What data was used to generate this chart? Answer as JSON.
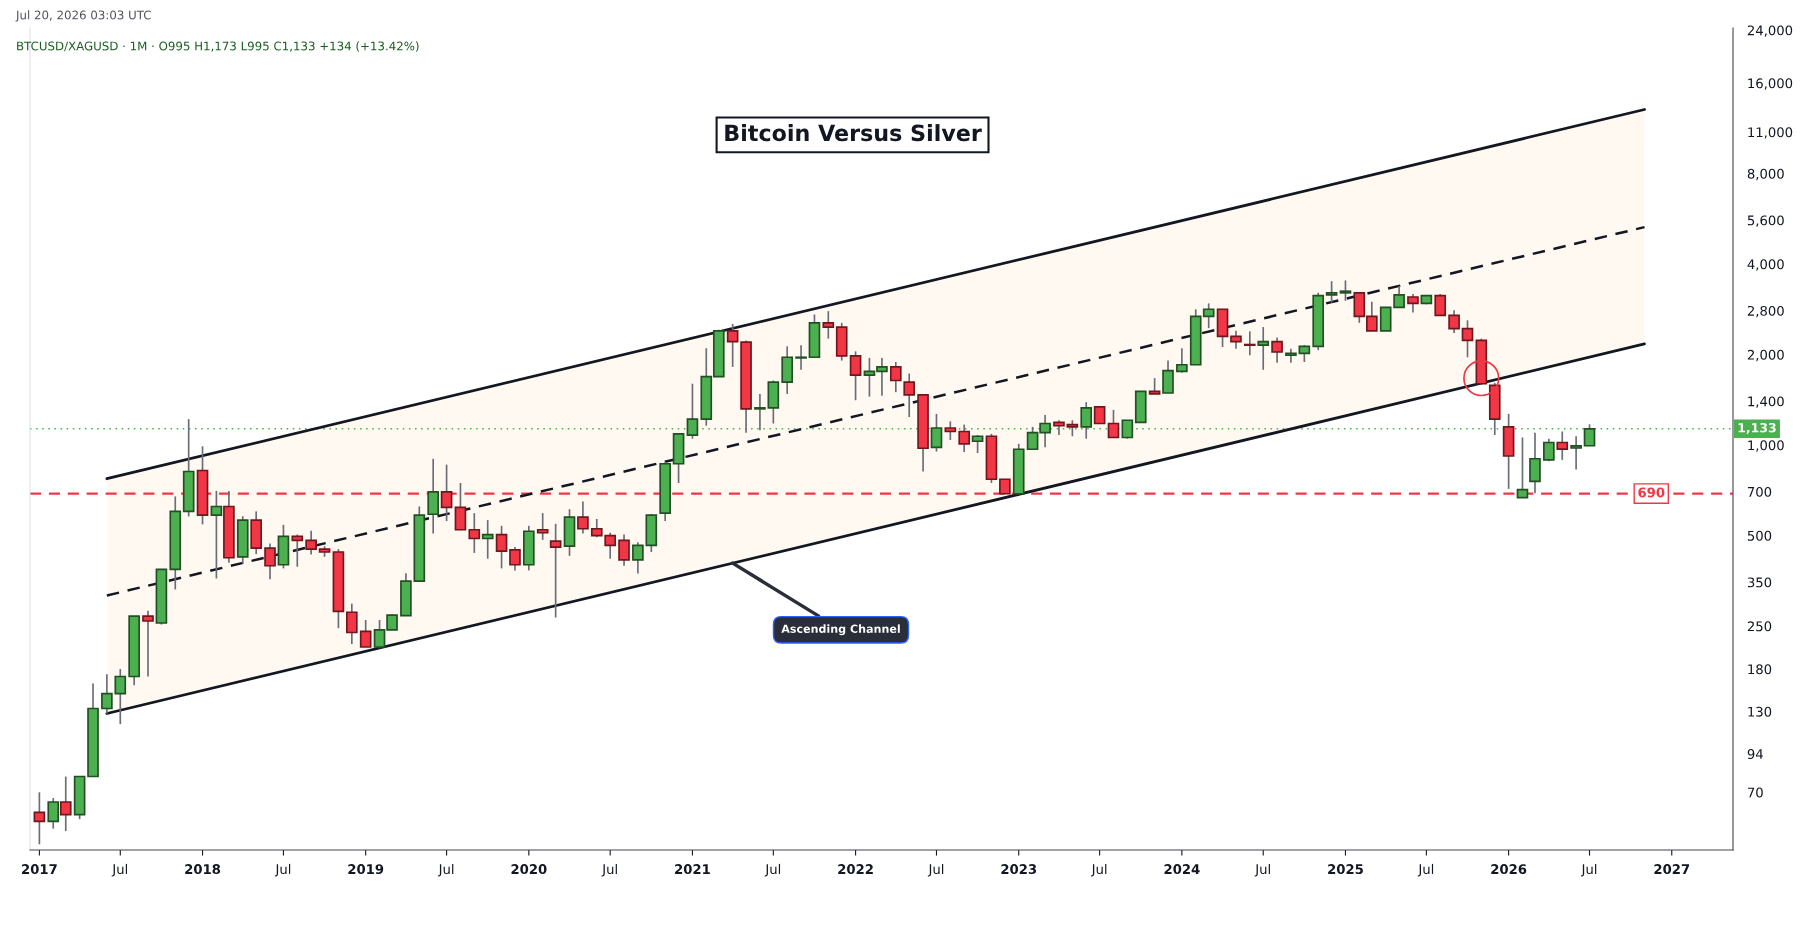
{
  "chart_data": {
    "type": "candlestick",
    "title": "Bitcoin Versus Silver",
    "subtitle": "BTCUSD/XAGUSD · 1M · O995 H1,173 L995 C1,133 +134 (+13.42%)",
    "annotations": [
      "Jul 20, 2026 03:03 UTC",
      {
        "text": "Ascending Channel",
        "x": "2021-04",
        "y": 405
      }
    ],
    "x": [
      "2017-01",
      "2017-02",
      "2017-03",
      "2017-04",
      "2017-05",
      "2017-06",
      "2017-07",
      "2017-08",
      "2017-09",
      "2017-10",
      "2017-11",
      "2017-12",
      "2018-01",
      "2018-02",
      "2018-03",
      "2018-04",
      "2018-05",
      "2018-06",
      "2018-07",
      "2018-08",
      "2018-09",
      "2018-10",
      "2018-11",
      "2018-12",
      "2019-01",
      "2019-02",
      "2019-03",
      "2019-04",
      "2019-05",
      "2019-06",
      "2019-07",
      "2019-08",
      "2019-09",
      "2019-10",
      "2019-11",
      "2019-12",
      "2020-01",
      "2020-02",
      "2020-03",
      "2020-04",
      "2020-05",
      "2020-06",
      "2020-07",
      "2020-08",
      "2020-09",
      "2020-10",
      "2020-11",
      "2020-12",
      "2021-01",
      "2021-02",
      "2021-03",
      "2021-04",
      "2021-05",
      "2021-06",
      "2021-07",
      "2021-08",
      "2021-09",
      "2021-10",
      "2021-11",
      "2021-12",
      "2022-01",
      "2022-02",
      "2022-03",
      "2022-04",
      "2022-05",
      "2022-06",
      "2022-07",
      "2022-08",
      "2022-09",
      "2022-10",
      "2022-11",
      "2022-12",
      "2023-01",
      "2023-02",
      "2023-03",
      "2023-04",
      "2023-05",
      "2023-06",
      "2023-07",
      "2023-08",
      "2023-09",
      "2023-10",
      "2023-11",
      "2023-12",
      "2024-01",
      "2024-02",
      "2024-03",
      "2024-04",
      "2024-05",
      "2024-06",
      "2024-07",
      "2024-08",
      "2024-09",
      "2024-10",
      "2024-11",
      "2024-12",
      "2025-01",
      "2025-02",
      "2025-03",
      "2025-04",
      "2025-05",
      "2025-06",
      "2025-07",
      "2025-08",
      "2025-09",
      "2025-10",
      "2025-11",
      "2025-12",
      "2026-01",
      "2026-02",
      "2026-03",
      "2026-04",
      "2026-05",
      "2026-06",
      "2026-07"
    ],
    "ohlc": [
      [
        60,
        70,
        47,
        56
      ],
      [
        56,
        67,
        53,
        65
      ],
      [
        65,
        79,
        52,
        59
      ],
      [
        59,
        79,
        57,
        79
      ],
      [
        79,
        161,
        79,
        133
      ],
      [
        133,
        173,
        128,
        149
      ],
      [
        149,
        180,
        118,
        170
      ],
      [
        170,
        270,
        159,
        270
      ],
      [
        270,
        281,
        170,
        260
      ],
      [
        256,
        386,
        253,
        386
      ],
      [
        386,
        675,
        331,
        602
      ],
      [
        602,
        1220,
        579,
        817
      ],
      [
        823,
        991,
        545,
        585
      ],
      [
        585,
        704,
        360,
        625
      ],
      [
        625,
        704,
        406,
        422
      ],
      [
        425,
        580,
        403,
        563
      ],
      [
        563,
        602,
        434,
        454
      ],
      [
        454,
        471,
        358,
        397
      ],
      [
        400,
        543,
        389,
        497
      ],
      [
        497,
        504,
        394,
        482
      ],
      [
        482,
        519,
        433,
        451
      ],
      [
        451,
        461,
        425,
        441
      ],
      [
        441,
        451,
        246,
        280
      ],
      [
        278,
        297,
        218,
        238
      ],
      [
        240,
        262,
        213,
        213
      ],
      [
        213,
        262,
        211,
        243
      ],
      [
        243,
        274,
        243,
        272
      ],
      [
        271,
        375,
        271,
        353
      ],
      [
        353,
        625,
        353,
        585
      ],
      [
        589,
        900,
        508,
        699
      ],
      [
        699,
        861,
        559,
        621
      ],
      [
        621,
        748,
        521,
        523
      ],
      [
        523,
        594,
        438,
        489
      ],
      [
        489,
        563,
        419,
        504
      ],
      [
        504,
        539,
        389,
        444
      ],
      [
        448,
        458,
        383,
        400
      ],
      [
        400,
        539,
        383,
        517
      ],
      [
        523,
        594,
        484,
        511
      ],
      [
        479,
        547,
        267,
        458
      ],
      [
        461,
        612,
        428,
        576
      ],
      [
        576,
        649,
        508,
        527
      ],
      [
        527,
        568,
        494,
        500
      ],
      [
        500,
        511,
        419,
        464
      ],
      [
        482,
        504,
        397,
        415
      ],
      [
        415,
        475,
        374,
        464
      ],
      [
        464,
        589,
        441,
        585
      ],
      [
        594,
        880,
        559,
        867
      ],
      [
        867,
        1090,
        748,
        1090
      ],
      [
        1080,
        1600,
        1050,
        1220
      ],
      [
        1220,
        2100,
        1160,
        1690
      ],
      [
        1690,
        2420,
        1690,
        2400
      ],
      [
        2400,
        2530,
        1820,
        2210
      ],
      [
        2200,
        2230,
        1100,
        1320
      ],
      [
        1320,
        1480,
        1120,
        1330
      ],
      [
        1330,
        1640,
        1180,
        1620
      ],
      [
        1620,
        2130,
        1480,
        1960
      ],
      [
        1950,
        2150,
        1780,
        1960
      ],
      [
        1960,
        2720,
        1960,
        2550
      ],
      [
        2550,
        2790,
        2260,
        2470
      ],
      [
        2470,
        2550,
        1910,
        1980
      ],
      [
        1980,
        2050,
        1410,
        1710
      ],
      [
        1710,
        1950,
        1450,
        1760
      ],
      [
        1760,
        1950,
        1460,
        1820
      ],
      [
        1820,
        1890,
        1500,
        1640
      ],
      [
        1620,
        1730,
        1240,
        1470
      ],
      [
        1470,
        1470,
        817,
        976
      ],
      [
        983,
        1270,
        952,
        1140
      ],
      [
        1140,
        1200,
        1040,
        1110
      ],
      [
        1110,
        1170,
        948,
        1010
      ],
      [
        1030,
        1080,
        941,
        1070
      ],
      [
        1070,
        1090,
        748,
        770
      ],
      [
        770,
        770,
        689,
        689
      ],
      [
        689,
        1010,
        689,
        969
      ],
      [
        969,
        1150,
        969,
        1100
      ],
      [
        1100,
        1260,
        983,
        1180
      ],
      [
        1190,
        1210,
        1080,
        1160
      ],
      [
        1170,
        1210,
        1070,
        1150
      ],
      [
        1150,
        1390,
        1050,
        1330
      ],
      [
        1340,
        1350,
        1180,
        1180
      ],
      [
        1180,
        1310,
        1060,
        1060
      ],
      [
        1060,
        1210,
        1050,
        1210
      ],
      [
        1190,
        1510,
        1190,
        1510
      ],
      [
        1510,
        1670,
        1480,
        1480
      ],
      [
        1490,
        1910,
        1490,
        1770
      ],
      [
        1760,
        2100,
        1740,
        1850
      ],
      [
        1850,
        2830,
        1850,
        2680
      ],
      [
        2680,
        2960,
        2450,
        2830
      ],
      [
        2830,
        2830,
        2120,
        2300
      ],
      [
        2300,
        2400,
        2090,
        2210
      ],
      [
        2160,
        2390,
        1990,
        2150
      ],
      [
        2150,
        2470,
        1780,
        2210
      ],
      [
        2210,
        2280,
        1880,
        2040
      ],
      [
        1990,
        2090,
        1880,
        2020
      ],
      [
        2020,
        2150,
        1890,
        2130
      ],
      [
        2130,
        3210,
        2070,
        3140
      ],
      [
        3160,
        3510,
        2980,
        3210
      ],
      [
        3210,
        3530,
        3020,
        3250
      ],
      [
        3210,
        3210,
        2550,
        2680
      ],
      [
        2680,
        3000,
        2400,
        2400
      ],
      [
        2400,
        2870,
        2400,
        2870
      ],
      [
        2870,
        3380,
        2870,
        3160
      ],
      [
        3110,
        3180,
        2760,
        2960
      ],
      [
        2960,
        3160,
        2940,
        3140
      ],
      [
        3140,
        3180,
        2700,
        2700
      ],
      [
        2700,
        2810,
        2360,
        2440
      ],
      [
        2440,
        2600,
        1960,
        2230
      ],
      [
        2230,
        2260,
        1600,
        1600
      ],
      [
        1580,
        1610,
        1080,
        1220
      ],
      [
        1150,
        1270,
        715,
        920
      ],
      [
        669,
        1060,
        669,
        711
      ],
      [
        757,
        1100,
        692,
        901
      ],
      [
        893,
        1050,
        884,
        1020
      ],
      [
        1020,
        1110,
        893,
        970
      ],
      [
        978,
        1070,
        829,
        994
      ],
      [
        995,
        1173,
        995,
        1133
      ]
    ],
    "colors": [
      "#f23645",
      "#4caf50",
      "#f23645",
      "#4caf50",
      "#4caf50",
      "#4caf50",
      "#4caf50",
      "#4caf50",
      "#f23645",
      "#4caf50",
      "#4caf50",
      "#4caf50",
      "#f23645",
      "#4caf50",
      "#f23645",
      "#4caf50",
      "#f23645",
      "#f23645",
      "#4caf50",
      "#f23645",
      "#f23645",
      "#f23645",
      "#f23645",
      "#f23645",
      "#f23645",
      "#4caf50",
      "#4caf50",
      "#4caf50",
      "#4caf50",
      "#4caf50",
      "#f23645",
      "#f23645",
      "#f23645",
      "#4caf50",
      "#f23645",
      "#f23645",
      "#4caf50",
      "#f23645",
      "#f23645",
      "#4caf50",
      "#f23645",
      "#f23645",
      "#f23645",
      "#f23645",
      "#4caf50",
      "#4caf50",
      "#4caf50",
      "#4caf50",
      "#4caf50",
      "#4caf50",
      "#4caf50",
      "#f23645",
      "#f23645",
      "#4caf50",
      "#4caf50",
      "#4caf50",
      "#4caf50",
      "#4caf50",
      "#f23645",
      "#f23645",
      "#f23645",
      "#4caf50",
      "#4caf50",
      "#f23645",
      "#f23645",
      "#f23645",
      "#4caf50",
      "#f23645",
      "#f23645",
      "#4caf50",
      "#f23645",
      "#f23645",
      "#4caf50",
      "#4caf50",
      "#4caf50",
      "#f23645",
      "#f23645",
      "#4caf50",
      "#f23645",
      "#f23645",
      "#4caf50",
      "#4caf50",
      "#f23645",
      "#4caf50",
      "#4caf50",
      "#4caf50",
      "#4caf50",
      "#f23645",
      "#f23645",
      "#f23645",
      "#4caf50",
      "#f23645",
      "#4caf50",
      "#4caf50",
      "#4caf50",
      "#4caf50",
      "#4caf50",
      "#f23645",
      "#f23645",
      "#4caf50",
      "#4caf50",
      "#f23645",
      "#4caf50",
      "#f23645",
      "#f23645",
      "#f23645",
      "#f23645",
      "#f23645",
      "#f23645",
      "#4caf50",
      "#4caf50",
      "#4caf50",
      "#f23645",
      "#4caf50",
      "#4caf50"
    ],
    "series": [
      {
        "type": "line",
        "x": [
          "2017-06",
          "2026-11"
        ],
        "values": [
          773,
          13070
        ],
        "color": "#131722",
        "line_style": "solid"
      },
      {
        "type": "line",
        "x": [
          "2017-06",
          "2026-11"
        ],
        "values": [
          316,
          5310
        ],
        "lower": [
          128,
          2170
        ],
        "upper": [
          773,
          13070
        ],
        "color": "#131722",
        "line_style": "dashed"
      },
      {
        "type": "line",
        "x": [
          "2017-06",
          "2026-11"
        ],
        "values": [
          128,
          2170
        ],
        "color": "#131722",
        "line_style": "solid"
      }
    ],
    "ref_lines": [
      {
        "axis": "y",
        "value": 690,
        "label": "690",
        "color": "#f23645",
        "line_style": "dashed"
      },
      {
        "axis": "y",
        "value": 1133,
        "label": "1,133",
        "color": "#4caf50",
        "line_style": "dotted"
      }
    ],
    "log": true,
    "xlim": [
      "2016-12-11",
      "2027-05-18"
    ],
    "ylim": [
      45,
      24400
    ],
    "xticks": [
      {
        "value": "2017-01",
        "label": "2017"
      },
      {
        "value": "2017-07",
        "label": "Jul"
      },
      {
        "value": "2018-01",
        "label": "2018"
      },
      {
        "value": "2018-07",
        "label": "Jul"
      },
      {
        "value": "2019-01",
        "label": "2019"
      },
      {
        "value": "2019-07",
        "label": "Jul"
      },
      {
        "value": "2020-01",
        "label": "2020"
      },
      {
        "value": "2020-07",
        "label": "Jul"
      },
      {
        "value": "2021-01",
        "label": "2021"
      },
      {
        "value": "2021-07",
        "label": "Jul"
      },
      {
        "value": "2022-01",
        "label": "2022"
      },
      {
        "value": "2022-07",
        "label": "Jul"
      },
      {
        "value": "2023-01",
        "label": "2023"
      },
      {
        "value": "2023-07",
        "label": "Jul"
      },
      {
        "value": "2024-01",
        "label": "2024"
      },
      {
        "value": "2024-07",
        "label": "Jul"
      },
      {
        "value": "2025-01",
        "label": "2025"
      },
      {
        "value": "2025-07",
        "label": "Jul"
      },
      {
        "value": "2026-01",
        "label": "2026"
      },
      {
        "value": "2026-07",
        "label": "Jul"
      },
      {
        "value": "2027-01",
        "label": "2027"
      }
    ],
    "yticks": [
      70,
      94,
      130,
      180,
      250,
      350,
      500,
      700,
      {
        "value": 1000,
        "label": "1,000"
      },
      {
        "value": 1400,
        "label": "1,400"
      },
      {
        "value": 2000,
        "label": "2,000"
      },
      {
        "value": 2800,
        "label": "2,800"
      },
      {
        "value": 4000,
        "label": "4,000"
      },
      {
        "value": 5600,
        "label": "5,600"
      },
      {
        "value": 8000,
        "label": "8,000"
      },
      {
        "value": 11000,
        "label": "11,000"
      },
      {
        "value": 16000,
        "label": "16,000"
      },
      {
        "value": 24000,
        "label": "24,000"
      }
    ]
  }
}
